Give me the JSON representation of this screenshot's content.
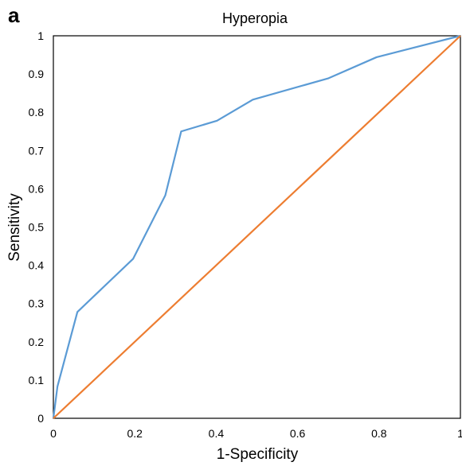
{
  "panel_label": "a",
  "chart_data": {
    "type": "line",
    "title": "Hyperopia",
    "xlabel": "1-Specificity",
    "ylabel": "Sensitivity",
    "xlim": [
      0,
      1
    ],
    "ylim": [
      0,
      1
    ],
    "x_ticks": [
      "0",
      "0.2",
      "0.4",
      "0.6",
      "0.8",
      "1"
    ],
    "y_ticks": [
      "0",
      "0.1",
      "0.2",
      "0.3",
      "0.4",
      "0.5",
      "0.6",
      "0.7",
      "0.8",
      "0.9",
      "1"
    ],
    "grid": false,
    "legend": "none",
    "series": [
      {
        "color": "#5b9bd5",
        "points": [
          [
            0,
            0
          ],
          [
            0.01,
            0.083
          ],
          [
            0.059,
            0.278
          ],
          [
            0.196,
            0.417
          ],
          [
            0.275,
            0.583
          ],
          [
            0.314,
            0.75
          ],
          [
            0.402,
            0.778
          ],
          [
            0.49,
            0.833
          ],
          [
            0.676,
            0.889
          ],
          [
            0.794,
            0.944
          ],
          [
            1,
            1
          ]
        ]
      },
      {
        "color": "#ed7d31",
        "points": [
          [
            0,
            0
          ],
          [
            1,
            1
          ]
        ]
      }
    ]
  }
}
